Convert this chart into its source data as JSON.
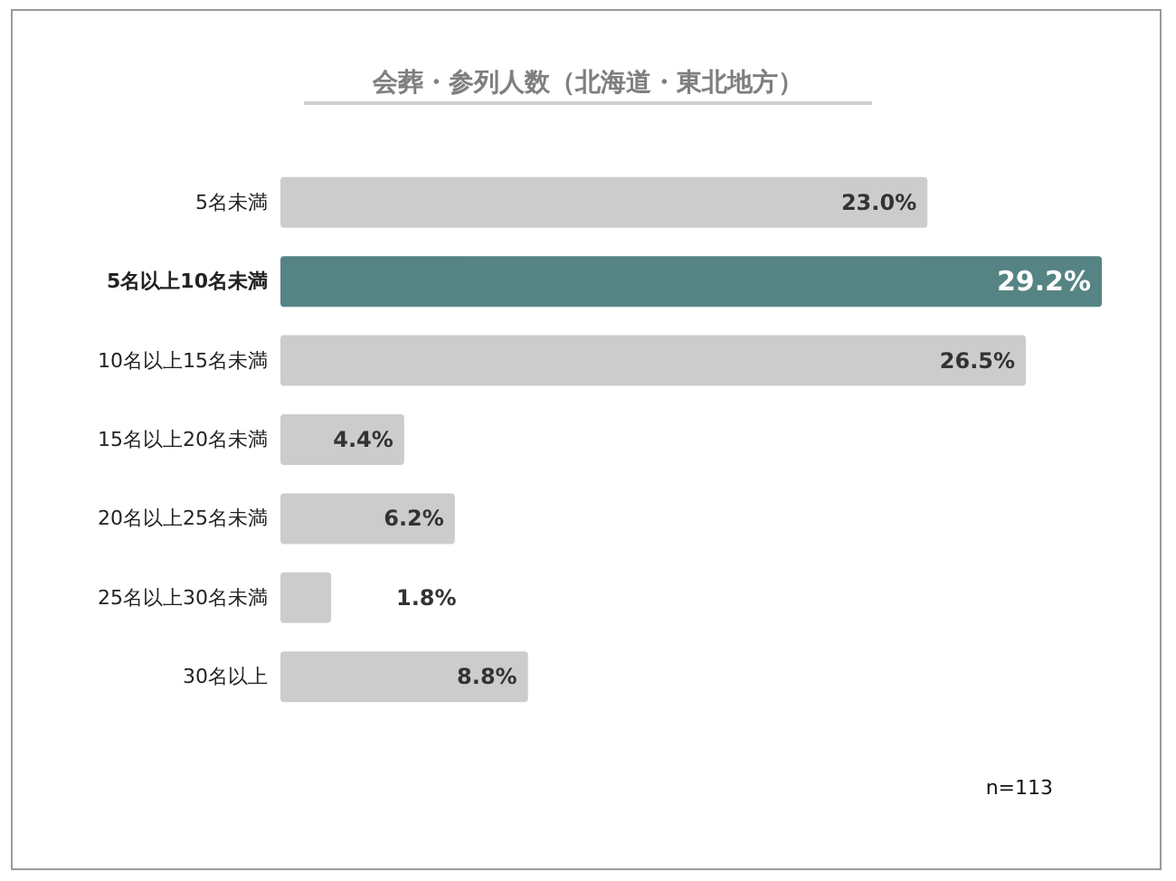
{
  "chart_data": {
    "type": "bar",
    "orientation": "horizontal",
    "title": "会葬・参列人数（北海道・東北地方）",
    "categories": [
      "5名未満",
      "5名以上10名未満",
      "10名以上15名未満",
      "15名以上20名未満",
      "20名以上25名未満",
      "25名以上30名未満",
      "30名以上"
    ],
    "values": [
      23.0,
      29.2,
      26.5,
      4.4,
      6.2,
      1.8,
      8.8
    ],
    "value_labels": [
      "23.0%",
      "29.2%",
      "26.5%",
      "4.4%",
      "6.2%",
      "1.8%",
      "8.8%"
    ],
    "colors": [
      "#cccccc",
      "#568383",
      "#cccccc",
      "#cccccc",
      "#cccccc",
      "#cccccc",
      "#cccccc"
    ],
    "annotations": [
      "n=113"
    ]
  }
}
